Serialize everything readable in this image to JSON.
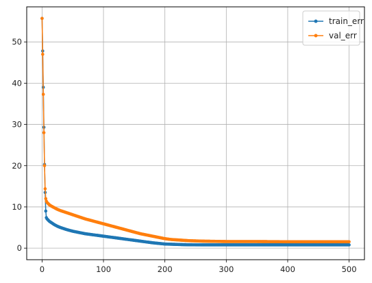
{
  "chart_data": {
    "type": "line",
    "title": "",
    "xlabel": "",
    "ylabel": "",
    "xlim": [
      -25,
      525
    ],
    "ylim": [
      -2.8,
      58.5
    ],
    "xticks": [
      0,
      100,
      200,
      300,
      400,
      500
    ],
    "yticks": [
      0,
      10,
      20,
      30,
      40,
      50
    ],
    "grid": true,
    "legend_position": "top-right",
    "marker": "dot",
    "series": [
      {
        "name": "train_err",
        "color": "#1f77b4",
        "x": [
          0,
          1,
          2,
          3,
          4,
          5,
          6,
          7,
          8,
          10,
          12,
          15,
          20,
          25,
          30,
          40,
          50,
          60,
          70,
          80,
          90,
          100,
          110,
          120,
          130,
          140,
          150,
          160,
          170,
          180,
          190,
          200,
          210,
          220,
          230,
          240,
          260,
          280,
          300,
          350,
          400,
          450,
          500
        ],
        "y": [
          55.7,
          47.8,
          39.0,
          29.3,
          20.3,
          13.5,
          9.0,
          7.4,
          7.1,
          6.8,
          6.5,
          6.2,
          5.7,
          5.3,
          5.0,
          4.5,
          4.1,
          3.8,
          3.5,
          3.3,
          3.1,
          2.9,
          2.7,
          2.5,
          2.3,
          2.1,
          1.9,
          1.7,
          1.5,
          1.3,
          1.15,
          1.0,
          0.95,
          0.9,
          0.85,
          0.82,
          0.8,
          0.8,
          0.8,
          0.8,
          0.8,
          0.8,
          0.8
        ]
      },
      {
        "name": "val_err",
        "color": "#ff7f0e",
        "x": [
          0,
          1,
          2,
          3,
          4,
          5,
          6,
          7,
          8,
          10,
          12,
          15,
          20,
          25,
          30,
          40,
          50,
          60,
          70,
          80,
          90,
          100,
          110,
          120,
          130,
          140,
          150,
          160,
          170,
          180,
          190,
          200,
          210,
          220,
          230,
          240,
          260,
          280,
          300,
          350,
          400,
          450,
          500
        ],
        "y": [
          55.7,
          47.0,
          37.3,
          28.0,
          20.0,
          14.4,
          12.0,
          11.4,
          11.1,
          10.8,
          10.5,
          10.2,
          9.8,
          9.4,
          9.1,
          8.6,
          8.1,
          7.6,
          7.1,
          6.7,
          6.3,
          5.9,
          5.5,
          5.1,
          4.7,
          4.3,
          3.9,
          3.5,
          3.2,
          2.9,
          2.6,
          2.3,
          2.1,
          2.0,
          1.9,
          1.8,
          1.7,
          1.65,
          1.6,
          1.6,
          1.55,
          1.55,
          1.55
        ]
      }
    ]
  }
}
